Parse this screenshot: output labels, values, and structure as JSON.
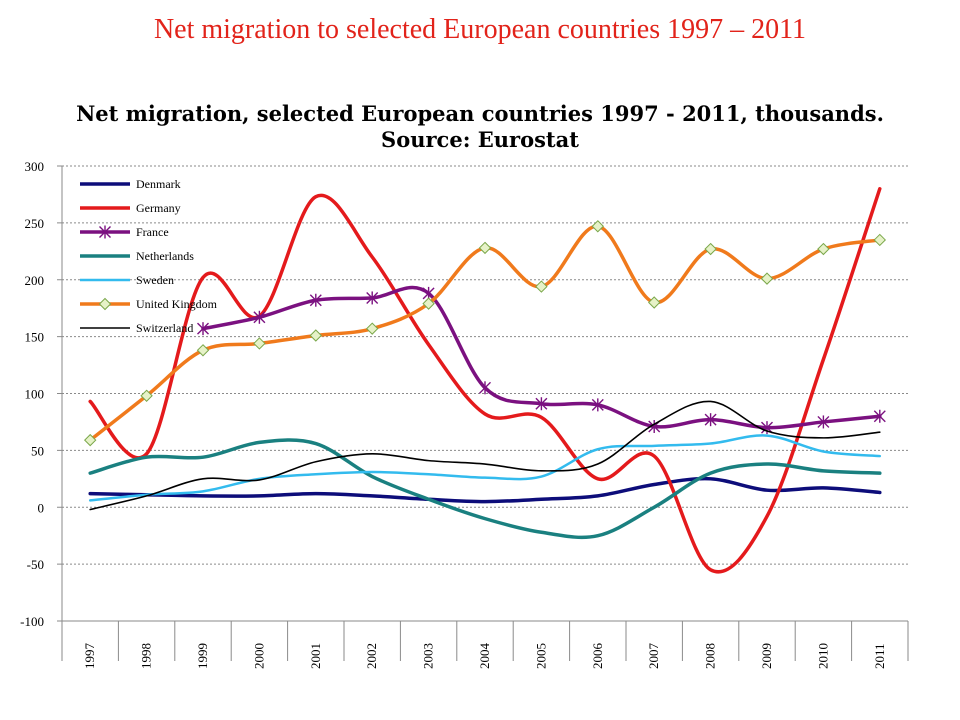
{
  "slide": {
    "title": "Net migration to selected European countries 1997 – 2011"
  },
  "chart_data": {
    "type": "line",
    "title_lines": [
      "Net migration, selected European countries 1997 - 2011, thousands.",
      "Source: Eurostat"
    ],
    "xlabel": "",
    "ylabel": "",
    "ylim": [
      -100,
      300
    ],
    "yticks": [
      300,
      250,
      200,
      150,
      100,
      50,
      0,
      -50,
      -100
    ],
    "categories": [
      "1997",
      "1998",
      "1999",
      "2000",
      "2001",
      "2002",
      "2003",
      "2004",
      "2005",
      "2006",
      "2007",
      "2008",
      "2009",
      "2010",
      "2011"
    ],
    "grid": true,
    "legend_position": "top-left",
    "series": [
      {
        "name": "Denmark",
        "color": "#0d0d7a",
        "marker": "none",
        "width": 3.5,
        "values": [
          12,
          11,
          10,
          10,
          12,
          10,
          7,
          5,
          7,
          10,
          20,
          25,
          15,
          17,
          13
        ]
      },
      {
        "name": "Germany",
        "color": "#e41a1c",
        "marker": "none",
        "width": 3.5,
        "values": [
          93,
          47,
          202,
          168,
          273,
          220,
          143,
          82,
          79,
          25,
          45,
          -55,
          -8,
          130,
          280
        ]
      },
      {
        "name": "France",
        "color": "#7b1180",
        "marker": "star",
        "width": 3.5,
        "values": [
          null,
          null,
          157,
          167,
          182,
          184,
          188,
          105,
          91,
          90,
          71,
          77,
          70,
          75,
          80
        ]
      },
      {
        "name": "Netherlands",
        "color": "#1a8080",
        "marker": "none",
        "width": 3.5,
        "values": [
          30,
          44,
          44,
          57,
          56,
          27,
          7,
          -10,
          -22,
          -25,
          0,
          30,
          38,
          32,
          30
        ]
      },
      {
        "name": "Sweden",
        "color": "#33bbee",
        "marker": "none",
        "width": 2.5,
        "values": [
          6,
          11,
          14,
          25,
          29,
          31,
          29,
          26,
          27,
          51,
          54,
          56,
          63,
          49,
          45
        ]
      },
      {
        "name": "United Kingdom",
        "color": "#f07a1c",
        "marker": "diamond",
        "width": 3.5,
        "values": [
          59,
          98,
          138,
          144,
          151,
          157,
          179,
          228,
          194,
          247,
          180,
          227,
          201,
          227,
          235
        ]
      },
      {
        "name": "Switzerland",
        "color": "#000000",
        "marker": "none",
        "width": 1.6,
        "values": [
          -2,
          10,
          25,
          24,
          40,
          47,
          41,
          38,
          32,
          38,
          73,
          93,
          67,
          61,
          66
        ]
      }
    ]
  }
}
